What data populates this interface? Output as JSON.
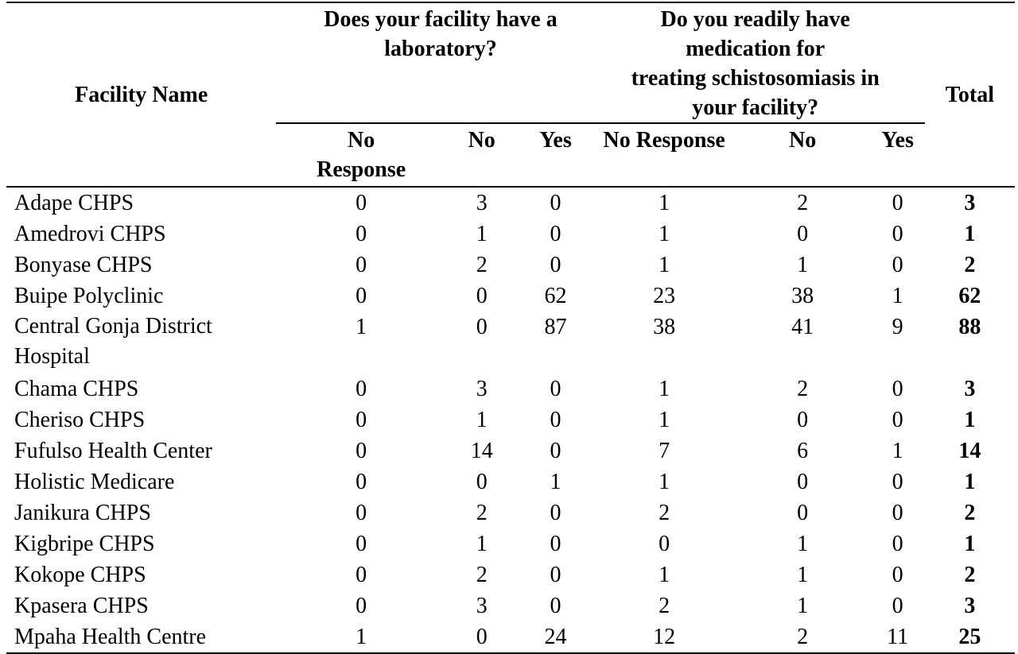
{
  "headers": {
    "facility": "Facility Name",
    "lab_question_line1": "Does your facility have a",
    "lab_question_line2": "laboratory?",
    "med_question_line1": "Do you readily have",
    "med_question_line2": "medication for",
    "med_question_line3": "treating schistosomiasis in",
    "med_question_line4": "your facility?",
    "total": "Total",
    "lab_sub": [
      "No Response",
      "No",
      "Yes"
    ],
    "med_sub": [
      "No Response",
      "No",
      "Yes"
    ],
    "lab_no_response_line1": "No",
    "lab_no_response_line2": "Response"
  },
  "rows": [
    {
      "name": "Adape CHPS",
      "lab_nr": "0",
      "lab_no": "3",
      "lab_yes": "0",
      "med_nr": "1",
      "med_no": "2",
      "med_yes": "0",
      "total": "3"
    },
    {
      "name": "Amedrovi CHPS",
      "lab_nr": "0",
      "lab_no": "1",
      "lab_yes": "0",
      "med_nr": "1",
      "med_no": "0",
      "med_yes": "0",
      "total": "1"
    },
    {
      "name": "Bonyase CHPS",
      "lab_nr": "0",
      "lab_no": "2",
      "lab_yes": "0",
      "med_nr": "1",
      "med_no": "1",
      "med_yes": "0",
      "total": "2"
    },
    {
      "name": "Buipe Polyclinic",
      "lab_nr": "0",
      "lab_no": "0",
      "lab_yes": "62",
      "med_nr": "23",
      "med_no": "38",
      "med_yes": "1",
      "total": "62"
    },
    {
      "name": "Central Gonja District Hospital",
      "lab_nr": "1",
      "lab_no": "0",
      "lab_yes": "87",
      "med_nr": "38",
      "med_no": "41",
      "med_yes": "9",
      "total": "88"
    },
    {
      "name": "Chama CHPS",
      "lab_nr": "0",
      "lab_no": "3",
      "lab_yes": "0",
      "med_nr": "1",
      "med_no": "2",
      "med_yes": "0",
      "total": "3"
    },
    {
      "name": "Cheriso CHPS",
      "lab_nr": "0",
      "lab_no": "1",
      "lab_yes": "0",
      "med_nr": "1",
      "med_no": "0",
      "med_yes": "0",
      "total": "1"
    },
    {
      "name": "Fufulso Health Center",
      "lab_nr": "0",
      "lab_no": "14",
      "lab_yes": "0",
      "med_nr": "7",
      "med_no": "6",
      "med_yes": "1",
      "total": "14"
    },
    {
      "name": "Holistic Medicare",
      "lab_nr": "0",
      "lab_no": "0",
      "lab_yes": "1",
      "med_nr": "1",
      "med_no": "0",
      "med_yes": "0",
      "total": "1"
    },
    {
      "name": "Janikura CHPS",
      "lab_nr": "0",
      "lab_no": "2",
      "lab_yes": "0",
      "med_nr": "2",
      "med_no": "0",
      "med_yes": "0",
      "total": "2"
    },
    {
      "name": "Kigbripe CHPS",
      "lab_nr": "0",
      "lab_no": "1",
      "lab_yes": "0",
      "med_nr": "0",
      "med_no": "1",
      "med_yes": "0",
      "total": "1"
    },
    {
      "name": "Kokope CHPS",
      "lab_nr": "0",
      "lab_no": "2",
      "lab_yes": "0",
      "med_nr": "1",
      "med_no": "1",
      "med_yes": "0",
      "total": "2"
    },
    {
      "name": "Kpasera CHPS",
      "lab_nr": "0",
      "lab_no": "3",
      "lab_yes": "0",
      "med_nr": "2",
      "med_no": "1",
      "med_yes": "0",
      "total": "3"
    },
    {
      "name": "Mpaha Health Centre",
      "lab_nr": "1",
      "lab_no": "0",
      "lab_yes": "24",
      "med_nr": "12",
      "med_no": "2",
      "med_yes": "11",
      "total": "25"
    }
  ]
}
